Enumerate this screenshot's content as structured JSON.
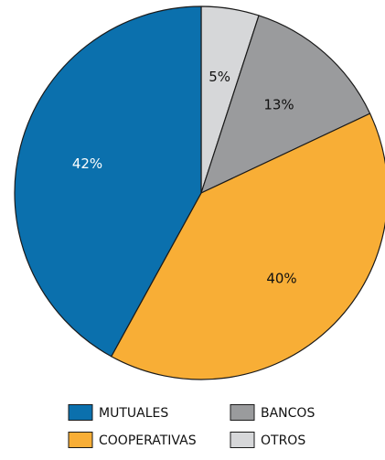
{
  "chart_data": {
    "type": "pie",
    "slices": [
      {
        "label": "OTROS",
        "value": 5,
        "display": "5%",
        "color": "#d6d7d9",
        "label_color": "#111111"
      },
      {
        "label": "BANCOS",
        "value": 13,
        "display": "13%",
        "color": "#9a9b9d",
        "label_color": "#111111"
      },
      {
        "label": "COOPERATIVAS",
        "value": 40,
        "display": "40%",
        "color": "#f8ae36",
        "label_color": "#111111"
      },
      {
        "label": "MUTUALES",
        "value": 42,
        "display": "42%",
        "color": "#0b70ad",
        "label_color": "#ffffff"
      }
    ],
    "start_angle_deg": 0,
    "direction": "clockwise",
    "legend_placement": "bottom",
    "legend": [
      {
        "label": "MUTUALES",
        "color": "#0b70ad"
      },
      {
        "label": "BANCOS",
        "color": "#9a9b9d"
      },
      {
        "label": "COOPERATIVAS",
        "color": "#f8ae36"
      },
      {
        "label": "OTROS",
        "color": "#d6d7d9"
      }
    ]
  }
}
